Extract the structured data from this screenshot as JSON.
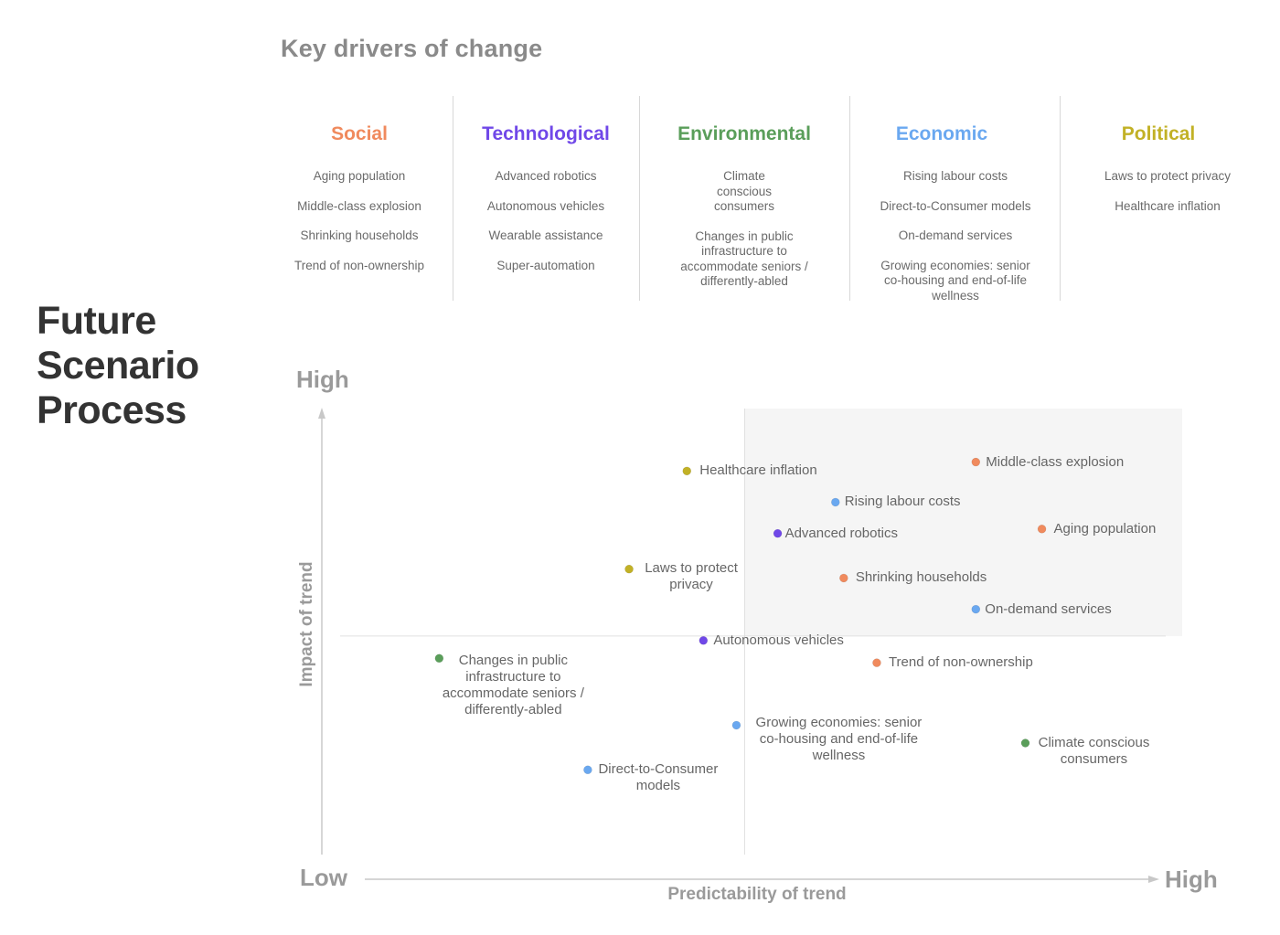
{
  "title": [
    "Future",
    "Scenario",
    "Process"
  ],
  "drivers": {
    "heading": "Key drivers of change",
    "columns": [
      {
        "name": "Social",
        "color": "#f08a5d",
        "items": [
          "Aging population",
          "Middle-class explosion",
          "Shrinking households",
          "Trend of non-ownership"
        ]
      },
      {
        "name": "Technological",
        "color": "#7048e8",
        "items": [
          "Advanced robotics",
          "Autonomous vehicles",
          "Wearable assistance",
          "Super-automation"
        ]
      },
      {
        "name": "Environmental",
        "color": "#5a9e5a",
        "items": [
          "Climate conscious consumers",
          "Changes in public infrastructure to accommodate seniors / differently-abled"
        ]
      },
      {
        "name": "Economic",
        "color": "#6aa8f0",
        "items": [
          "Rising labour costs",
          "Direct-to-Consumer models",
          "On-demand services",
          "Growing economies: senior co-housing and end-of-life wellness"
        ]
      },
      {
        "name": "Political",
        "color": "#c2b126",
        "items": [
          "Laws to protect privacy",
          "Healthcare inflation"
        ]
      }
    ]
  },
  "axes": {
    "y_high": "High",
    "x_low": "Low",
    "x_high": "High",
    "y_title": "Impact of trend",
    "x_title": "Predictability of trend"
  },
  "chart_data": {
    "type": "scatter",
    "xlabel": "Predictability of trend",
    "ylabel": "Impact of trend",
    "xlim": [
      0,
      100
    ],
    "ylim": [
      0,
      100
    ],
    "quadrant_split": {
      "x": 49,
      "y": 49
    },
    "highlighted_quadrant": "top-right",
    "categories": {
      "Social": "#f08a5d",
      "Technological": "#7048e8",
      "Environmental": "#5a9e5a",
      "Economic": "#6aa8f0",
      "Political": "#c2b126"
    },
    "points": [
      {
        "label": "Healthcare inflation",
        "category": "Political",
        "x": 42,
        "y": 86
      },
      {
        "label": "Middle-class explosion",
        "category": "Social",
        "x": 77,
        "y": 88
      },
      {
        "label": "Rising labour costs",
        "category": "Economic",
        "x": 60,
        "y": 79
      },
      {
        "label": "Advanced robotics",
        "category": "Technological",
        "x": 53,
        "y": 72
      },
      {
        "label": "Aging population",
        "category": "Social",
        "x": 85,
        "y": 73
      },
      {
        "label": "Laws to protect privacy",
        "category": "Political",
        "x": 35,
        "y": 64
      },
      {
        "label": "Shrinking households",
        "category": "Social",
        "x": 61,
        "y": 62
      },
      {
        "label": "On-demand services",
        "category": "Economic",
        "x": 77,
        "y": 55
      },
      {
        "label": "Autonomous vehicles",
        "category": "Technological",
        "x": 44,
        "y": 48
      },
      {
        "label": "Changes in public infrastructure to accommodate seniors / differently-abled",
        "category": "Environmental",
        "x": 12,
        "y": 44
      },
      {
        "label": "Trend of non-ownership",
        "category": "Social",
        "x": 65,
        "y": 43
      },
      {
        "label": "Growing economies: senior co-housing and end-of-life wellness",
        "category": "Economic",
        "x": 48,
        "y": 29
      },
      {
        "label": "Climate conscious consumers",
        "category": "Environmental",
        "x": 83,
        "y": 25
      },
      {
        "label": "Direct-to-Consumer models",
        "category": "Economic",
        "x": 30,
        "y": 19
      }
    ]
  }
}
